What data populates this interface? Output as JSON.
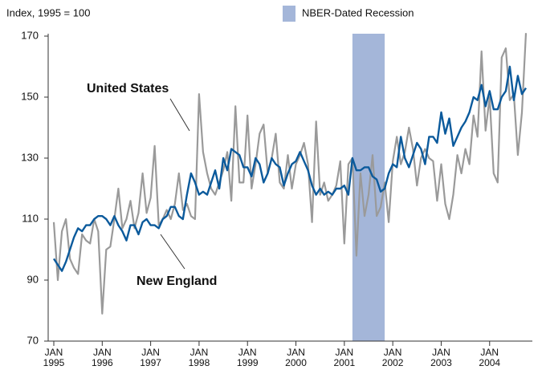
{
  "chart_data": {
    "type": "line",
    "title": "Index, 1995 = 100",
    "x": [
      "1995-01",
      "1995-02",
      "1995-03",
      "1995-04",
      "1995-05",
      "1995-06",
      "1995-07",
      "1995-08",
      "1995-09",
      "1995-10",
      "1995-11",
      "1995-12",
      "1996-01",
      "1996-02",
      "1996-03",
      "1996-04",
      "1996-05",
      "1996-06",
      "1996-07",
      "1996-08",
      "1996-09",
      "1996-10",
      "1996-11",
      "1996-12",
      "1997-01",
      "1997-02",
      "1997-03",
      "1997-04",
      "1997-05",
      "1997-06",
      "1997-07",
      "1997-08",
      "1997-09",
      "1997-10",
      "1997-11",
      "1997-12",
      "1998-01",
      "1998-02",
      "1998-03",
      "1998-04",
      "1998-05",
      "1998-06",
      "1998-07",
      "1998-08",
      "1998-09",
      "1998-10",
      "1998-11",
      "1998-12",
      "1999-01",
      "1999-02",
      "1999-03",
      "1999-04",
      "1999-05",
      "1999-06",
      "1999-07",
      "1999-08",
      "1999-09",
      "1999-10",
      "1999-11",
      "1999-12",
      "2000-01",
      "2000-02",
      "2000-03",
      "2000-04",
      "2000-05",
      "2000-06",
      "2000-07",
      "2000-08",
      "2000-09",
      "2000-10",
      "2000-11",
      "2000-12",
      "2001-01",
      "2001-02",
      "2001-03",
      "2001-04",
      "2001-05",
      "2001-06",
      "2001-07",
      "2001-08",
      "2001-09",
      "2001-10",
      "2001-11",
      "2001-12",
      "2002-01",
      "2002-02",
      "2002-03",
      "2002-04",
      "2002-05",
      "2002-06",
      "2002-07",
      "2002-08",
      "2002-09",
      "2002-10",
      "2002-11",
      "2002-12",
      "2003-01",
      "2003-02",
      "2003-03",
      "2003-04",
      "2003-05",
      "2003-06",
      "2003-07",
      "2003-08",
      "2003-09",
      "2003-10",
      "2003-11",
      "2003-12",
      "2004-01",
      "2004-02",
      "2004-03",
      "2004-04",
      "2004-05",
      "2004-06",
      "2004-07",
      "2004-08",
      "2004-09",
      "2004-10"
    ],
    "series": [
      {
        "name": "United States",
        "color": "#9a9a9a",
        "values": [
          109,
          90,
          106,
          110,
          97,
          94,
          92,
          105,
          103,
          102,
          110,
          106,
          79,
          100,
          101,
          110,
          120,
          107,
          110,
          116,
          107,
          112,
          125,
          112,
          117,
          134,
          108,
          110,
          113,
          110,
          115,
          125,
          113,
          115,
          111,
          110,
          151,
          132,
          125,
          120,
          118,
          122,
          126,
          132,
          116,
          147,
          122,
          122,
          144,
          120,
          128,
          138,
          141,
          125,
          130,
          138,
          122,
          120,
          131,
          120,
          128,
          131,
          135,
          128,
          109,
          142,
          118,
          122,
          116,
          118,
          121,
          129,
          102,
          128,
          130,
          98,
          125,
          111,
          118,
          131,
          111,
          114,
          122,
          109,
          129,
          137,
          128,
          132,
          140,
          133,
          121,
          130,
          133,
          130,
          129,
          116,
          128,
          115,
          110,
          118,
          131,
          125,
          133,
          128,
          144,
          137,
          165,
          139,
          150,
          125,
          122,
          163,
          166,
          149,
          151,
          131,
          145,
          171
        ]
      },
      {
        "name": "New England",
        "color": "#0b5a9c",
        "values": [
          97,
          95,
          93,
          96,
          100,
          104,
          107,
          106,
          108,
          108,
          110,
          111,
          111,
          110,
          108,
          111,
          108,
          106,
          103,
          108,
          108,
          105,
          109,
          110,
          108,
          108,
          107,
          110,
          111,
          114,
          114,
          111,
          110,
          118,
          125,
          122,
          118,
          119,
          118,
          122,
          126,
          120,
          130,
          126,
          133,
          132,
          131,
          127,
          127,
          124,
          130,
          128,
          122,
          125,
          130,
          128,
          127,
          121,
          125,
          128,
          129,
          132,
          129,
          126,
          121,
          118,
          120,
          118,
          119,
          118,
          120,
          120,
          121,
          118,
          130,
          126,
          126,
          127,
          127,
          124,
          123,
          119,
          120,
          125,
          128,
          127,
          137,
          130,
          127,
          131,
          135,
          133,
          128,
          137,
          137,
          135,
          145,
          138,
          143,
          134,
          137,
          140,
          142,
          145,
          150,
          149,
          154,
          147,
          152,
          146,
          146,
          150,
          152,
          160,
          149,
          157,
          151,
          153
        ]
      }
    ],
    "recession": {
      "name": "NBER-Dated Recession",
      "start": "2001-03",
      "end": "2001-11",
      "color": "#a4b6d9"
    },
    "xlim": [
      "1995-01",
      "2004-10"
    ],
    "xticks": [
      {
        "value": "1995-01",
        "label": "JAN 1995"
      },
      {
        "value": "1996-01",
        "label": "JAN 1996"
      },
      {
        "value": "1997-01",
        "label": "JAN 1997"
      },
      {
        "value": "1998-01",
        "label": "JAN 1998"
      },
      {
        "value": "1999-01",
        "label": "JAN 1999"
      },
      {
        "value": "2000-01",
        "label": "JAN 2000"
      },
      {
        "value": "2001-01",
        "label": "JAN 2001"
      },
      {
        "value": "2002-01",
        "label": "JAN 2002"
      },
      {
        "value": "2003-01",
        "label": "JAN 2003"
      },
      {
        "value": "2004-01",
        "label": "JAN 2004"
      }
    ],
    "ylim": [
      70,
      170
    ],
    "yticks": [
      70,
      90,
      110,
      130,
      150,
      170
    ]
  }
}
